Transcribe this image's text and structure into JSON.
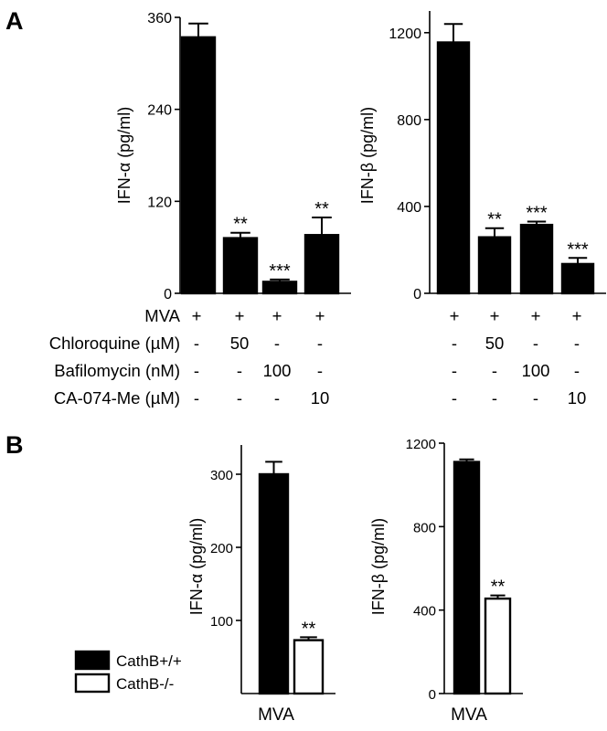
{
  "panel_labels": [
    "A",
    "B"
  ],
  "treatment_table": {
    "rows": [
      {
        "label": "MVA",
        "values": [
          "+",
          "+",
          "+",
          "+"
        ]
      },
      {
        "label": "Chloroquine (µM)",
        "values": [
          "-",
          "50",
          "-",
          "-"
        ]
      },
      {
        "label": "Bafilomycin (nM)",
        "values": [
          "-",
          "-",
          "100",
          "-"
        ]
      },
      {
        "label": "CA-074-Me (µM)",
        "values": [
          "-",
          "-",
          "-",
          "10"
        ]
      }
    ]
  },
  "legend": {
    "entries": [
      {
        "label": "CathB+/+",
        "fill": "#000000"
      },
      {
        "label": "CathB-/-",
        "fill": "#ffffff"
      }
    ]
  },
  "chart_data": [
    {
      "id": "A-left",
      "type": "bar",
      "ylabel": "IFN-α (pg/ml)",
      "ylim": [
        0,
        360
      ],
      "yticks": [
        0,
        120,
        240,
        360
      ],
      "series": [
        {
          "values": [
            334,
            72,
            15,
            76
          ],
          "errors": [
            18,
            7,
            3,
            23
          ],
          "significance": [
            "",
            "**",
            "***",
            "**"
          ],
          "fill": "#000000"
        }
      ]
    },
    {
      "id": "A-right",
      "type": "bar",
      "ylabel": "IFN-β (pg/ml)",
      "ylim": [
        0,
        1300
      ],
      "yticks": [
        0,
        400,
        800,
        1200
      ],
      "series": [
        {
          "values": [
            1155,
            258,
            315,
            135
          ],
          "errors": [
            85,
            42,
            15,
            28
          ],
          "significance": [
            "",
            "**",
            "***",
            "***"
          ],
          "fill": "#000000"
        }
      ]
    },
    {
      "id": "B-left",
      "type": "bar",
      "ylabel": "IFN-α (pg/ml)",
      "xlabel": "MVA",
      "ylim": [
        0,
        340
      ],
      "yticks": [
        100,
        200,
        300
      ],
      "series": [
        {
          "name": "CathB+/+",
          "values": [
            300
          ],
          "errors": [
            17
          ],
          "significance": [
            ""
          ],
          "fill": "#000000"
        },
        {
          "name": "CathB-/-",
          "values": [
            73
          ],
          "errors": [
            4
          ],
          "significance": [
            "**"
          ],
          "fill": "#ffffff"
        }
      ]
    },
    {
      "id": "B-right",
      "type": "bar",
      "ylabel": "IFN-β (pg/ml)",
      "xlabel": "MVA",
      "ylim": [
        0,
        1200
      ],
      "yticks": [
        0,
        400,
        800,
        1200
      ],
      "series": [
        {
          "name": "CathB+/+",
          "values": [
            1110
          ],
          "errors": [
            12
          ],
          "significance": [
            ""
          ],
          "fill": "#000000"
        },
        {
          "name": "CathB-/-",
          "values": [
            455
          ],
          "errors": [
            15
          ],
          "significance": [
            "**"
          ],
          "fill": "#ffffff"
        }
      ]
    }
  ]
}
